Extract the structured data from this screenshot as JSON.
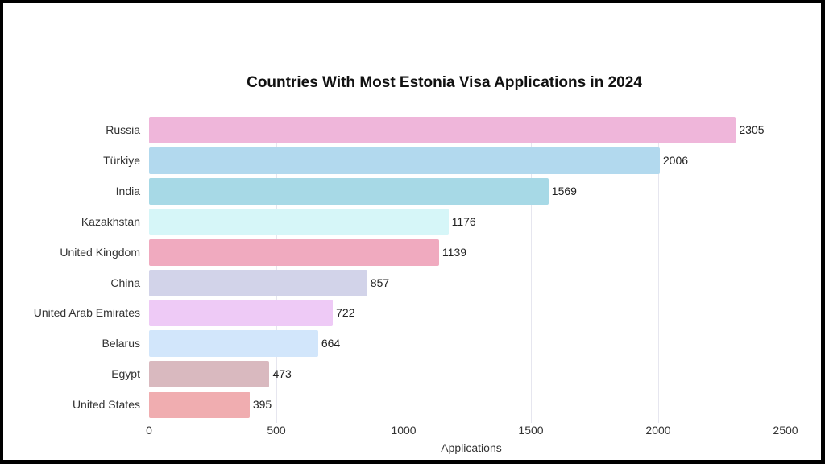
{
  "chart_data": {
    "type": "bar",
    "orientation": "horizontal",
    "title": "Countries With Most Estonia Visa Applications in 2024",
    "xlabel": "Applications",
    "ylabel": "",
    "xlim": [
      0,
      2500
    ],
    "xticks": [
      "0",
      "500",
      "1000",
      "1500",
      "2000",
      "2500"
    ],
    "grid": true,
    "legend": false,
    "categories": [
      "Russia",
      "Türkiye",
      "India",
      "Kazakhstan",
      "United Kingdom",
      "China",
      "United Arab Emirates",
      "Belarus",
      "Egypt",
      "United States"
    ],
    "values": [
      2305,
      2006,
      1569,
      1176,
      1139,
      857,
      722,
      664,
      473,
      395
    ],
    "value_labels": [
      "2305",
      "2006",
      "1569",
      "1176",
      "1139",
      "857",
      "722",
      "664",
      "473",
      "395"
    ],
    "colors": [
      "#efb6da",
      "#b2d9ee",
      "#a7d9e6",
      "#d6f6f8",
      "#f0aabf",
      "#d2d3e9",
      "#eecaf6",
      "#d2e6fb",
      "#d9b9bf",
      "#f0adb0"
    ]
  }
}
